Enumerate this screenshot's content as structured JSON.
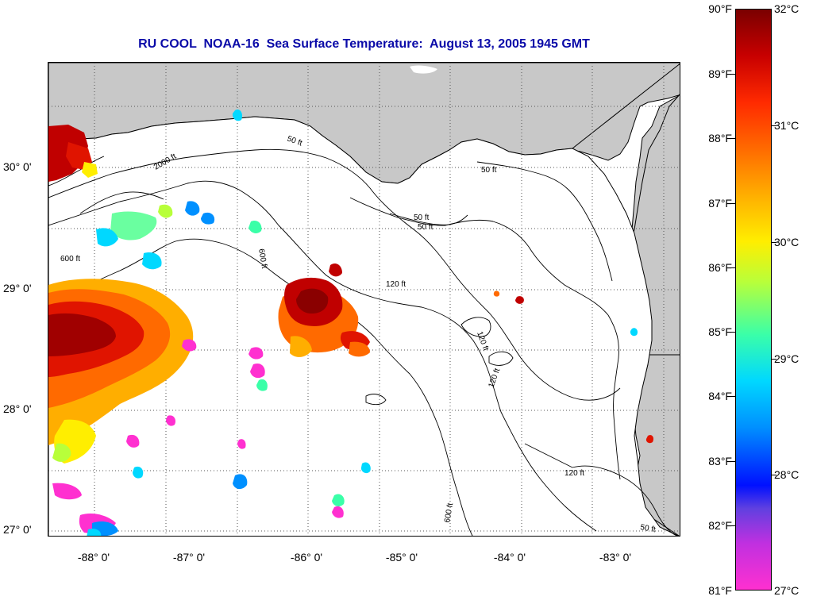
{
  "title": "RU COOL  NOAA-16  Sea Surface Temperature:  August 13, 2005 1945 GMT",
  "longitude_labels": [
    "-88° 0'",
    "-87° 0'",
    "-86° 0'",
    "-85° 0'",
    "-84° 0'",
    "-83° 0'"
  ],
  "latitude_labels": [
    "30° 0'",
    "29° 0'",
    "28° 0'",
    "27° 0'"
  ],
  "colorbar": {
    "fahrenheit": [
      "90°F",
      "89°F",
      "88°F",
      "87°F",
      "86°F",
      "85°F",
      "84°F",
      "83°F",
      "82°F",
      "81°F"
    ],
    "celsius": [
      "32°C",
      "31°C",
      "30°C",
      "29°C",
      "28°C",
      "27°C"
    ]
  },
  "contour_labels": [
    "50 ft",
    "50 ft",
    "50 ft",
    "50 ft",
    "120 ft",
    "120 ft",
    "120 ft",
    "120 ft",
    "600 ft",
    "600 ft",
    "600 ft",
    "2000 ft",
    "50 ft"
  ],
  "colors": {
    "land": "#c8c8c8",
    "title": "#0a0aa8",
    "ocean": "#ffffff"
  }
}
